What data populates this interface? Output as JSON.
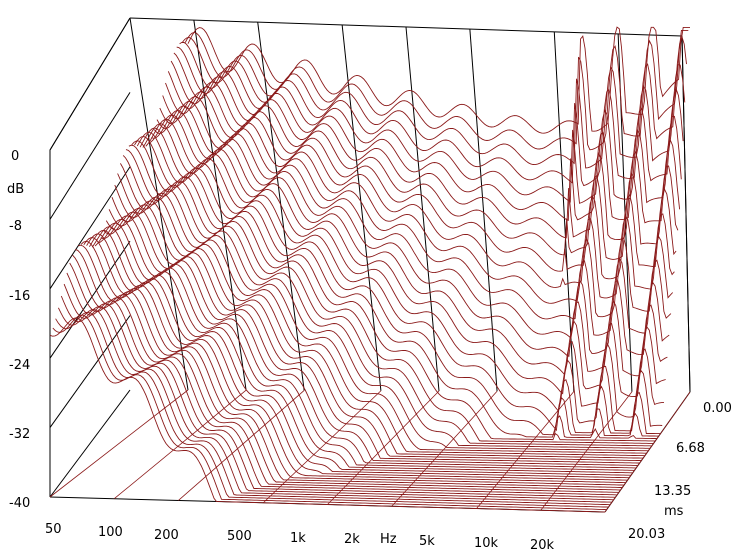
{
  "chart_data": {
    "type": "waterfall",
    "title": "",
    "x_axis": {
      "unit_label": "Hz",
      "scale": "log",
      "range": [
        50,
        20000
      ],
      "ticks": [
        {
          "value": 50,
          "label": "50"
        },
        {
          "value": 100,
          "label": "100"
        },
        {
          "value": 200,
          "label": "200"
        },
        {
          "value": 500,
          "label": "500"
        },
        {
          "value": 1000,
          "label": "1k"
        },
        {
          "value": 2000,
          "label": "2k"
        },
        {
          "value": 5000,
          "label": "5k"
        },
        {
          "value": 10000,
          "label": "10k"
        },
        {
          "value": 20000,
          "label": "20k"
        }
      ]
    },
    "y_axis": {
      "unit_label": "dB",
      "range": [
        -40,
        0
      ],
      "ticks": [
        {
          "value": 0,
          "label": "0"
        },
        {
          "value": -8,
          "label": "-8"
        },
        {
          "value": -16,
          "label": "-16"
        },
        {
          "value": -24,
          "label": "-24"
        },
        {
          "value": -32,
          "label": "-32"
        },
        {
          "value": -40,
          "label": "-40"
        }
      ]
    },
    "z_axis": {
      "unit_label": "ms",
      "range": [
        0,
        20.03
      ],
      "ticks": [
        {
          "value": 0,
          "label": "0.00"
        },
        {
          "value": 6.68,
          "label": "6.68"
        },
        {
          "value": 13.35,
          "label": "13.35"
        },
        {
          "value": 20.03,
          "label": "20.03"
        }
      ]
    },
    "slices": 50,
    "line_color": "#8b1a1a",
    "grid": true
  }
}
